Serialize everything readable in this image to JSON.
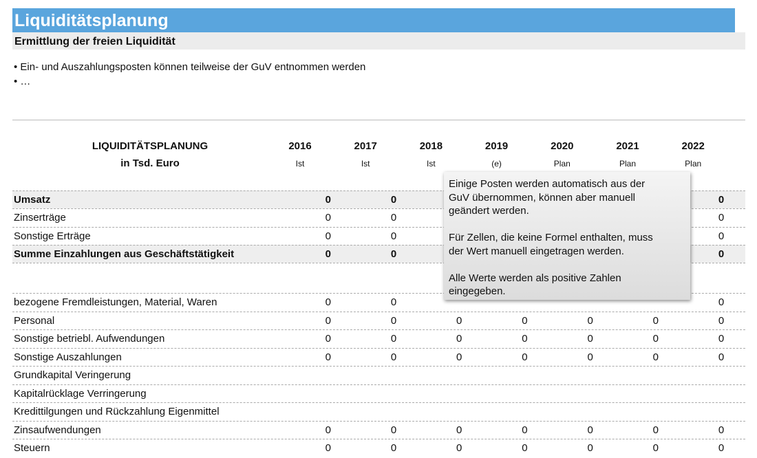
{
  "header": {
    "title": "Liquiditätsplanung",
    "subtitle": "Ermittlung der freien Liquidität"
  },
  "bullets": [
    "Ein- und Auszahlungsposten können teilweise der GuV entnommen werden",
    "…"
  ],
  "table": {
    "label_header": [
      "LIQUIDITÄTSPLANUNG",
      "in Tsd. Euro"
    ],
    "columns": [
      {
        "year": "2016",
        "status": "Ist"
      },
      {
        "year": "2017",
        "status": "Ist"
      },
      {
        "year": "2018",
        "status": "Ist"
      },
      {
        "year": "2019",
        "status": "(e)"
      },
      {
        "year": "2020",
        "status": "Plan"
      },
      {
        "year": "2021",
        "status": "Plan"
      },
      {
        "year": "2022",
        "status": "Plan"
      }
    ],
    "einzahlungen": [
      {
        "label": "Umsatz",
        "emphasis": true,
        "values": [
          0,
          0,
          null,
          null,
          null,
          null,
          0
        ]
      },
      {
        "label": "Zinserträge",
        "values": [
          0,
          0,
          null,
          null,
          null,
          null,
          0
        ]
      },
      {
        "label": "Sonstige Erträge",
        "values": [
          0,
          0,
          null,
          null,
          null,
          null,
          0
        ]
      },
      {
        "label": "Summe Einzahlungen aus Geschäftstätigkeit",
        "emphasis": true,
        "values": [
          0,
          0,
          null,
          null,
          null,
          null,
          0
        ]
      }
    ],
    "auszahlungen": [
      {
        "label": "bezogene Fremdleistungen, Material, Waren",
        "values": [
          0,
          0,
          null,
          null,
          null,
          null,
          0
        ]
      },
      {
        "label": "Personal",
        "values": [
          0,
          0,
          0,
          0,
          0,
          0,
          0
        ]
      },
      {
        "label": "Sonstige betriebl. Aufwendungen",
        "values": [
          0,
          0,
          0,
          0,
          0,
          0,
          0
        ]
      },
      {
        "label": "Sonstige Auszahlungen",
        "values": [
          0,
          0,
          0,
          0,
          0,
          0,
          0
        ]
      },
      {
        "label": "Grundkapital Veringerung",
        "values": [
          null,
          null,
          null,
          null,
          null,
          null,
          null
        ]
      },
      {
        "label": "Kapitalrücklage Verringerung",
        "values": [
          null,
          null,
          null,
          null,
          null,
          null,
          null
        ]
      },
      {
        "label": "Kredittilgungen und Rückzahlung Eigenmittel",
        "values": [
          null,
          null,
          null,
          null,
          null,
          null,
          null
        ]
      },
      {
        "label": "Zinsaufwendungen",
        "values": [
          0,
          0,
          0,
          0,
          0,
          0,
          0
        ]
      },
      {
        "label": "Steuern",
        "values": [
          0,
          0,
          0,
          0,
          0,
          0,
          0
        ]
      }
    ]
  },
  "tooltip": {
    "paragraphs": [
      [
        "Einige Posten werden automatisch aus der",
        "GuV übernommen, können aber manuell",
        "geändert werden."
      ],
      [
        "Für Zellen, die keine Formel enthalten, muss",
        "der Wert manuell eingetragen werden."
      ],
      [
        "Alle Werte werden als positive Zahlen",
        "eingegeben."
      ]
    ]
  }
}
